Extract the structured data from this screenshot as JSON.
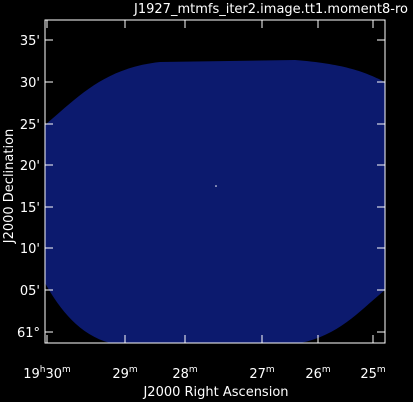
{
  "plot": {
    "title": "J1927_mtmfs_iter2.image.tt1.moment8-ro",
    "x_label": "J2000 Right Ascension",
    "y_label": "J2000 Declination",
    "x_ticks": [
      [
        "19",
        "h",
        "30",
        "m"
      ],
      [
        "29",
        "m"
      ],
      [
        "28",
        "m"
      ],
      [
        "27",
        "m"
      ],
      [
        "26",
        "m"
      ],
      [
        "25",
        "m"
      ]
    ],
    "y_ticks": [
      "35'",
      "30'",
      "25'",
      "20'",
      "15'",
      "10'",
      "05'",
      "61°"
    ]
  }
}
